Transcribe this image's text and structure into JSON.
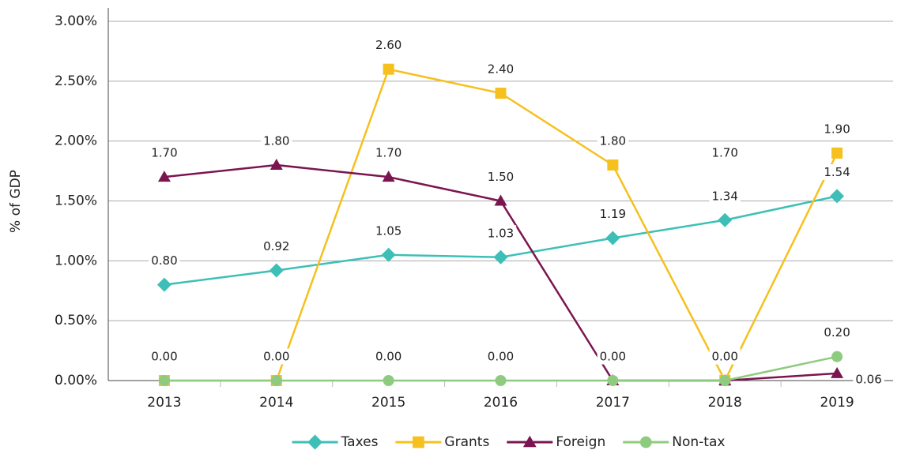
{
  "chart_data": {
    "type": "line",
    "y_label": "% of GDP",
    "categories": [
      "2013",
      "2014",
      "2015",
      "2016",
      "2017",
      "2018",
      "2019"
    ],
    "ylim": [
      0,
      3
    ],
    "yticks": [
      {
        "value": 0,
        "label": "0.00%"
      },
      {
        "value": 0.5,
        "label": "0.50%"
      },
      {
        "value": 1,
        "label": "1.00%"
      },
      {
        "value": 1.5,
        "label": "1.50%"
      },
      {
        "value": 2,
        "label": "2.00%"
      },
      {
        "value": 2.5,
        "label": "2.50%"
      },
      {
        "value": 3,
        "label": "3.00%"
      }
    ],
    "grid": true,
    "legend": "bottom",
    "series": [
      {
        "name": "Taxes",
        "color": "#3dbfb8",
        "marker": "diamond",
        "values": [
          0.8,
          0.92,
          1.05,
          1.03,
          1.19,
          1.34,
          1.54
        ],
        "value_labels": [
          "0.80",
          "0.92",
          "1.05",
          "1.03",
          "1.19",
          "1.34",
          "1.54"
        ]
      },
      {
        "name": "Grants",
        "color": "#f6c01e",
        "marker": "square",
        "values": [
          0,
          0,
          2.6,
          2.4,
          1.8,
          0,
          1.9
        ],
        "value_labels": [
          null,
          null,
          "2.60",
          "2.40",
          "1.80",
          null,
          "1.90"
        ]
      },
      {
        "name": "Foreign",
        "color": "#7b1550",
        "marker": "triangle",
        "values": [
          1.7,
          1.8,
          1.7,
          1.5,
          0,
          0,
          0.06
        ],
        "value_labels": [
          "1.70",
          "1.80",
          "1.70",
          "1.50",
          null,
          null,
          "0.06"
        ]
      },
      {
        "name": "Non-tax",
        "color": "#8fcb7f",
        "marker": "circle",
        "values": [
          0,
          0,
          0,
          0,
          0,
          0,
          0.2
        ],
        "value_labels": [
          "0.00",
          "0.00",
          "0.00",
          "0.00",
          "0.00",
          "0.00",
          "0.20"
        ]
      }
    ],
    "annotations": [
      {
        "text": "1.70",
        "category": 5,
        "y": 1.7
      }
    ]
  }
}
